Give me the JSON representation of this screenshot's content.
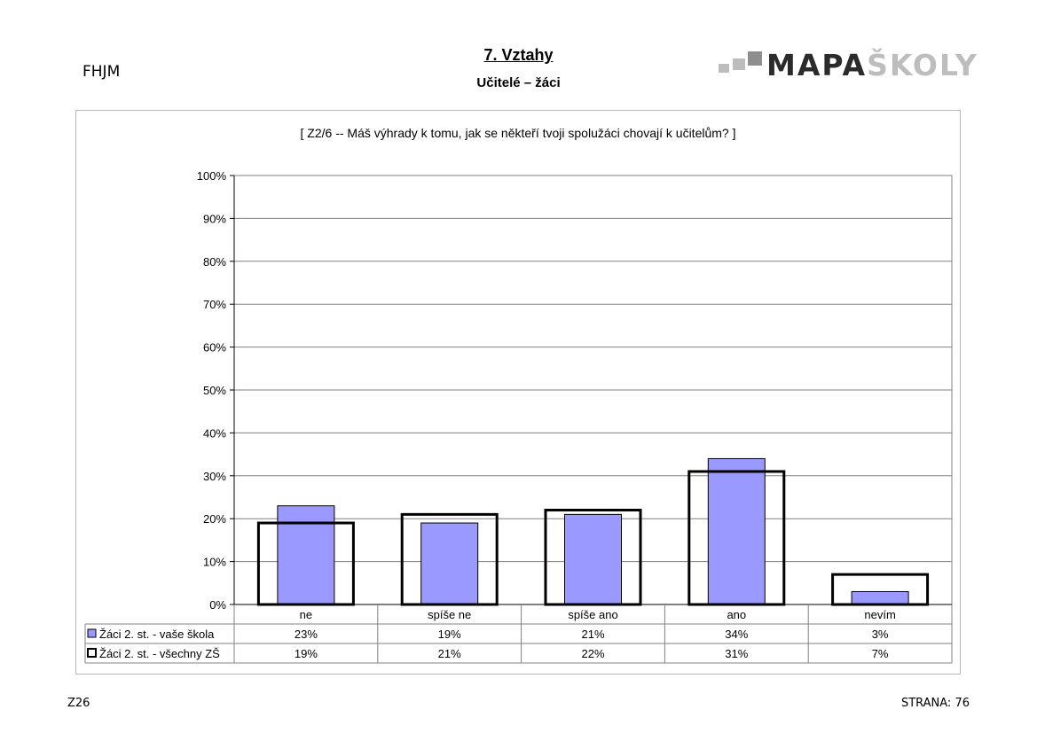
{
  "header": {
    "school_code": "FHJM",
    "section_title": "7. Vztahy",
    "section_subtitle": "Učitelé – žáci",
    "logo_dark": "MAPA",
    "logo_light": "ŠKOLY"
  },
  "footer": {
    "code": "Z26",
    "page": "STRANA: 76"
  },
  "colors": {
    "school_bar": "#9999ff",
    "all_bar_outline": "#000000"
  },
  "chart_data": {
    "type": "bar",
    "title": "[ Z2/6 -- Máš výhrady k tomu, jak se někteří tvoji spolužáci chovají k učitelům? ]",
    "categories": [
      "ne",
      "spíše ne",
      "spíše ano",
      "ano",
      "nevím"
    ],
    "series": [
      {
        "name": "Žáci 2. st. - vaše škola",
        "values": [
          23,
          19,
          21,
          34,
          3
        ],
        "labels": [
          "23%",
          "19%",
          "21%",
          "34%",
          "3%"
        ],
        "style": "filled"
      },
      {
        "name": "Žáci 2. st. - všechny ZŠ",
        "values": [
          19,
          21,
          22,
          31,
          7
        ],
        "labels": [
          "19%",
          "21%",
          "22%",
          "31%",
          "7%"
        ],
        "style": "outline"
      }
    ],
    "ylim": [
      0,
      100
    ],
    "yticks": [
      "0%",
      "10%",
      "20%",
      "30%",
      "40%",
      "50%",
      "60%",
      "70%",
      "80%",
      "90%",
      "100%"
    ],
    "grid": true,
    "legend": "data-table"
  }
}
